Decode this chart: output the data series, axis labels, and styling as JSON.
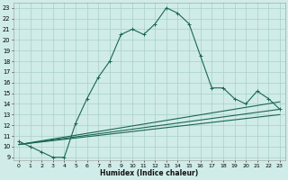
{
  "bg_color": "#d0ece8",
  "grid_color": "#a8d0c8",
  "line_color": "#1a6655",
  "xlabel": "Humidex (Indice chaleur)",
  "xlim": [
    -0.5,
    23.5
  ],
  "ylim": [
    8.7,
    23.5
  ],
  "xticks": [
    0,
    1,
    2,
    3,
    4,
    5,
    6,
    7,
    8,
    9,
    10,
    11,
    12,
    13,
    14,
    15,
    16,
    17,
    18,
    19,
    20,
    21,
    22,
    23
  ],
  "yticks": [
    9,
    10,
    11,
    12,
    13,
    14,
    15,
    16,
    17,
    18,
    19,
    20,
    21,
    22,
    23
  ],
  "curve1_x": [
    0,
    1,
    2,
    3,
    4,
    5,
    6,
    7,
    8,
    9,
    10,
    11,
    12,
    13,
    14,
    15,
    16,
    17,
    18,
    19,
    20,
    21,
    22,
    23
  ],
  "curve1_y": [
    10.5,
    10.0,
    9.5,
    9.0,
    9.0,
    12.2,
    14.5,
    16.5,
    18.0,
    20.5,
    21.0,
    20.5,
    21.5,
    23.0,
    22.5,
    21.5,
    18.5,
    15.5,
    15.5,
    14.5,
    14.0,
    15.2,
    14.5,
    13.5
  ],
  "curve2_x": [
    0,
    23
  ],
  "curve2_y": [
    10.2,
    13.0
  ],
  "curve3_x": [
    0,
    23
  ],
  "curve3_y": [
    10.2,
    13.5
  ],
  "curve4_x": [
    0,
    23
  ],
  "curve4_y": [
    10.2,
    14.2
  ]
}
